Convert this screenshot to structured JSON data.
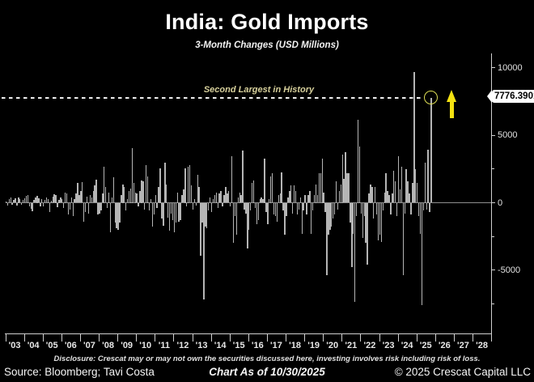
{
  "header": {
    "title": "India: Gold Imports",
    "subtitle": "3-Month Changes (USD Millions)"
  },
  "annotation": {
    "text": "Second Largest in History",
    "marker_value": 7776.3901,
    "value_label": "7776.3901",
    "arrow": "up-arrow"
  },
  "footer": {
    "disclosure": "Disclosure: Crescat may or may not own the securities discussed here, investing involves risk including risk of loss.",
    "source": "Source: Bloomberg; Tavi Costa",
    "as_of": "Chart As of 10/30/2025",
    "copyright": "© 2025 Crescat Capital LLC"
  },
  "colors": {
    "background": "#000000",
    "bar": "#b5b5b5",
    "axis": "#cfcfcf",
    "zero_line": "#8f8f8f",
    "annotation_text": "#d8d19c",
    "dashed_line": "#eeeeee",
    "circle": "#dede55",
    "arrow": "#f4e211",
    "value_label_bg": "#ffffff",
    "value_label_text": "#000000"
  },
  "chart_data": {
    "type": "bar",
    "title": "India: Gold Imports",
    "subtitle": "3-Month Changes (USD Millions)",
    "unit": "USD Millions",
    "frequency": "monthly",
    "start": "2003-01",
    "end": "2025-10",
    "ylim": [
      -9500,
      10900
    ],
    "grid": false,
    "y_axis_side": "right",
    "y_major_ticks": [
      10000,
      5000,
      0,
      -5000
    ],
    "y_minor_ticks": [
      7500,
      2500,
      -2500,
      -7500
    ],
    "x_tick_labels": [
      "'03",
      "'04",
      "'05",
      "'06",
      "'07",
      "'08",
      "'09",
      "'10",
      "'11",
      "'12",
      "'13",
      "'14",
      "'15",
      "'16",
      "'17",
      "'18",
      "'19",
      "'20",
      "'21",
      "'22",
      "'23",
      "'24",
      "'25",
      "'26",
      "'27",
      "'28"
    ],
    "highlight": {
      "index": "last",
      "value": 7776.3901,
      "note": "Second Largest in History"
    },
    "values": [
      120,
      -180,
      250,
      380,
      -150,
      220,
      310,
      -230,
      420,
      280,
      -160,
      200,
      350,
      520,
      600,
      -280,
      -420,
      -600,
      230,
      380,
      540,
      320,
      -240,
      280,
      -280,
      230,
      400,
      300,
      -700,
      180,
      480,
      650,
      600,
      -320,
      240,
      380,
      280,
      -380,
      780,
      700,
      -880,
      -480,
      380,
      -980,
      280,
      680,
      1450,
      580,
      880,
      1550,
      -1400,
      -680,
      480,
      -780,
      580,
      380,
      880,
      1280,
      1700,
      -880,
      -780,
      -580,
      680,
      2700,
      1180,
      -380,
      780,
      -2200,
      380,
      1880,
      -1480,
      -1880,
      -2000,
      -1480,
      580,
      1380,
      1180,
      -580,
      280,
      880,
      1080,
      4050,
      1480,
      780,
      680,
      -280,
      880,
      1680,
      1580,
      -480,
      2780,
      1980,
      -580,
      280,
      -1780,
      -880,
      580,
      -380,
      1180,
      2580,
      -1180,
      -1680,
      2980,
      1380,
      -1080,
      -2080,
      -780,
      -1280,
      -2180,
      -1480,
      780,
      -1380,
      -1280,
      580,
      980,
      2580,
      -280,
      2700,
      2780,
      1280,
      -480,
      280,
      -180,
      2080,
      1180,
      -3950,
      -1480,
      -7150,
      -1780,
      -1880,
      -580,
      380,
      -680,
      280,
      580,
      780,
      -380,
      680,
      880,
      -280,
      580,
      1180,
      680,
      880,
      -280,
      3480,
      -2980,
      -980,
      -2380,
      380,
      780,
      580,
      3860,
      -480,
      -780,
      -3370,
      -1980,
      -580,
      1480,
      1680,
      -380,
      -1580,
      -1280,
      280,
      380,
      280,
      3270,
      -680,
      -1580,
      280,
      1980,
      2180,
      -880,
      -980,
      -1380,
      580,
      680,
      2280,
      -580,
      -2380,
      -980,
      380,
      880,
      1280,
      -780,
      1280,
      880,
      -880,
      -480,
      380,
      -2280,
      -580,
      580,
      -880,
      580,
      880,
      -2280,
      -580,
      580,
      1380,
      580,
      2180,
      2180,
      3270,
      780,
      -680,
      -5340,
      -2380,
      -1980,
      -1780,
      -1180,
      -880,
      1580,
      -480,
      880,
      1380,
      3570,
      1780,
      3770,
      2180,
      2180,
      -1480,
      -4760,
      -2280,
      -7350,
      -980,
      6150,
      4170,
      -780,
      -2580,
      -980,
      -2980,
      -4560,
      680,
      1380,
      1180,
      -1180,
      1180,
      -880,
      -2780,
      -2380,
      -2880,
      -580,
      780,
      2180,
      880,
      580,
      -880,
      680,
      2380,
      1580,
      -980,
      3470,
      980,
      2680,
      -5350,
      -780,
      2480,
      1600,
      680,
      -880,
      1480,
      9700,
      2480,
      1480,
      -980,
      -2280,
      -7590,
      -580,
      2970,
      -480,
      3960,
      -680,
      7776.3901
    ]
  }
}
